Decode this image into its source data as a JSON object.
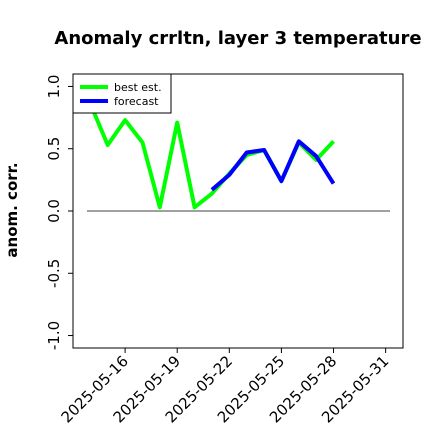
{
  "chart_data": {
    "type": "line",
    "title": "Anomaly crrltn, layer 3 temperature",
    "xlabel": "",
    "ylabel": "anom. corr.",
    "x_ticks": [
      "2025-05-16",
      "2025-05-19",
      "2025-05-22",
      "2025-05-25",
      "2025-05-28",
      "2025-05-31"
    ],
    "highlight_tick": "2025-05-22",
    "highlight_color": "#228b22",
    "xlim": [
      "2025-05-13",
      "2025-06-01"
    ],
    "y_ticks": [
      "-1.0",
      "-0.5",
      "0.0",
      "0.5",
      "1.0"
    ],
    "ylim": [
      -1.1,
      1.1
    ],
    "reference_line": 0.0,
    "grid": false,
    "legend_position": "top-left",
    "series": [
      {
        "name": "best est.",
        "color": "#00ff00",
        "points": [
          {
            "x": "2025-05-14",
            "y": 0.86
          },
          {
            "x": "2025-05-15",
            "y": 0.53
          },
          {
            "x": "2025-05-16",
            "y": 0.73
          },
          {
            "x": "2025-05-17",
            "y": 0.55
          },
          {
            "x": "2025-05-18",
            "y": 0.03
          },
          {
            "x": "2025-05-19",
            "y": 0.71
          },
          {
            "x": "2025-05-20",
            "y": 0.03
          },
          {
            "x": "2025-05-21",
            "y": 0.14
          },
          {
            "x": "2025-05-22",
            "y": 0.3
          },
          {
            "x": "2025-05-23",
            "y": 0.45
          },
          {
            "x": "2025-05-24",
            "y": 0.49
          },
          {
            "x": "2025-05-25",
            "y": 0.24
          },
          {
            "x": "2025-05-26",
            "y": 0.55
          },
          {
            "x": "2025-05-27",
            "y": 0.41
          },
          {
            "x": "2025-05-28",
            "y": 0.56
          }
        ]
      },
      {
        "name": "forecast",
        "color": "#0000ff",
        "points": [
          {
            "x": "2025-05-21",
            "y": 0.17
          },
          {
            "x": "2025-05-22",
            "y": 0.29
          },
          {
            "x": "2025-05-23",
            "y": 0.47
          },
          {
            "x": "2025-05-24",
            "y": 0.49
          },
          {
            "x": "2025-05-25",
            "y": 0.24
          },
          {
            "x": "2025-05-26",
            "y": 0.56
          },
          {
            "x": "2025-05-27",
            "y": 0.44
          },
          {
            "x": "2025-05-28",
            "y": 0.22
          }
        ]
      }
    ]
  }
}
